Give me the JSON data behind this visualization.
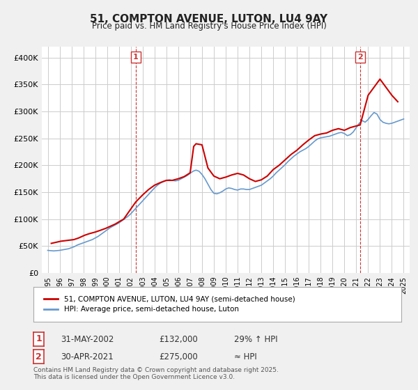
{
  "title": "51, COMPTON AVENUE, LUTON, LU4 9AY",
  "subtitle": "Price paid vs. HM Land Registry's House Price Index (HPI)",
  "xlabel": "",
  "ylabel": "",
  "ylim": [
    0,
    420000
  ],
  "yticks": [
    0,
    50000,
    100000,
    150000,
    200000,
    250000,
    300000,
    350000,
    400000
  ],
  "ytick_labels": [
    "£0",
    "£50K",
    "£100K",
    "£150K",
    "£200K",
    "£250K",
    "£300K",
    "£350K",
    "£400K"
  ],
  "bg_color": "#f0f0f0",
  "plot_bg_color": "#ffffff",
  "grid_color": "#cccccc",
  "red_color": "#cc0000",
  "blue_color": "#6699cc",
  "marker1_x": 2002.42,
  "marker1_y": 132000,
  "marker2_x": 2021.33,
  "marker2_y": 275000,
  "legend_label_red": "51, COMPTON AVENUE, LUTON, LU4 9AY (semi-detached house)",
  "legend_label_blue": "HPI: Average price, semi-detached house, Luton",
  "annotation1": "1",
  "annotation2": "2",
  "note1_box": "1    31-MAY-2002    £132,000    29% ↑ HPI",
  "note2_box": "2    30-APR-2021    £275,000    ≈ HPI",
  "footer": "Contains HM Land Registry data © Crown copyright and database right 2025.\nThis data is licensed under the Open Government Licence v3.0.",
  "hpi_data": {
    "years": [
      1995.0,
      1995.25,
      1995.5,
      1995.75,
      1996.0,
      1996.25,
      1996.5,
      1996.75,
      1997.0,
      1997.25,
      1997.5,
      1997.75,
      1998.0,
      1998.25,
      1998.5,
      1998.75,
      1999.0,
      1999.25,
      1999.5,
      1999.75,
      2000.0,
      2000.25,
      2000.5,
      2000.75,
      2001.0,
      2001.25,
      2001.5,
      2001.75,
      2002.0,
      2002.25,
      2002.5,
      2002.75,
      2003.0,
      2003.25,
      2003.5,
      2003.75,
      2004.0,
      2004.25,
      2004.5,
      2004.75,
      2005.0,
      2005.25,
      2005.5,
      2005.75,
      2006.0,
      2006.25,
      2006.5,
      2006.75,
      2007.0,
      2007.25,
      2007.5,
      2007.75,
      2008.0,
      2008.25,
      2008.5,
      2008.75,
      2009.0,
      2009.25,
      2009.5,
      2009.75,
      2010.0,
      2010.25,
      2010.5,
      2010.75,
      2011.0,
      2011.25,
      2011.5,
      2011.75,
      2012.0,
      2012.25,
      2012.5,
      2012.75,
      2013.0,
      2013.25,
      2013.5,
      2013.75,
      2014.0,
      2014.25,
      2014.5,
      2014.75,
      2015.0,
      2015.25,
      2015.5,
      2015.75,
      2016.0,
      2016.25,
      2016.5,
      2016.75,
      2017.0,
      2017.25,
      2017.5,
      2017.75,
      2018.0,
      2018.25,
      2018.5,
      2018.75,
      2019.0,
      2019.25,
      2019.5,
      2019.75,
      2020.0,
      2020.25,
      2020.5,
      2020.75,
      2021.0,
      2021.25,
      2021.5,
      2021.75,
      2022.0,
      2022.25,
      2022.5,
      2022.75,
      2023.0,
      2023.25,
      2023.5,
      2023.75,
      2024.0,
      2024.25,
      2024.5,
      2024.75,
      2025.0
    ],
    "values": [
      42000,
      41500,
      41000,
      41500,
      42000,
      43000,
      44000,
      45000,
      47000,
      49000,
      52000,
      54000,
      56000,
      58000,
      60000,
      62000,
      65000,
      68000,
      72000,
      76000,
      80000,
      84000,
      87000,
      90000,
      93000,
      97000,
      101000,
      105000,
      110000,
      116000,
      122000,
      128000,
      134000,
      140000,
      146000,
      152000,
      158000,
      163000,
      167000,
      170000,
      172000,
      173000,
      172000,
      171000,
      172000,
      175000,
      178000,
      181000,
      185000,
      189000,
      191000,
      189000,
      183000,
      175000,
      165000,
      155000,
      148000,
      147000,
      149000,
      152000,
      156000,
      158000,
      157000,
      155000,
      154000,
      156000,
      156000,
      155000,
      155000,
      157000,
      159000,
      161000,
      163000,
      167000,
      171000,
      175000,
      180000,
      186000,
      191000,
      196000,
      201000,
      207000,
      212000,
      217000,
      221000,
      225000,
      228000,
      231000,
      235000,
      240000,
      245000,
      249000,
      251000,
      252000,
      253000,
      254000,
      256000,
      258000,
      260000,
      261000,
      259000,
      255000,
      257000,
      262000,
      270000,
      278000,
      283000,
      280000,
      285000,
      292000,
      298000,
      295000,
      285000,
      280000,
      278000,
      277000,
      278000,
      280000,
      282000,
      284000,
      286000
    ]
  },
  "price_data": {
    "years": [
      1995.3,
      1995.7,
      1996.1,
      1997.2,
      1997.6,
      1998.1,
      1998.5,
      1999.0,
      1999.4,
      1999.9,
      2000.3,
      2000.7,
      2001.0,
      2001.4,
      2002.42,
      2003.0,
      2003.5,
      2004.0,
      2004.5,
      2005.0,
      2005.5,
      2006.0,
      2006.5,
      2007.0,
      2007.3,
      2007.5,
      2008.0,
      2008.5,
      2009.0,
      2009.5,
      2010.0,
      2010.5,
      2011.0,
      2011.5,
      2012.0,
      2012.5,
      2013.0,
      2013.5,
      2014.0,
      2014.5,
      2015.0,
      2015.5,
      2016.0,
      2016.5,
      2017.0,
      2017.5,
      2018.0,
      2018.5,
      2019.0,
      2019.5,
      2020.0,
      2020.5,
      2021.33,
      2022.0,
      2022.5,
      2023.0,
      2023.5,
      2024.0,
      2024.5
    ],
    "values": [
      55000,
      57000,
      59000,
      62000,
      65000,
      70000,
      73000,
      76000,
      79000,
      83000,
      87000,
      91000,
      95000,
      100000,
      132000,
      145000,
      155000,
      163000,
      168000,
      172000,
      172000,
      175000,
      179000,
      186000,
      235000,
      240000,
      238000,
      195000,
      180000,
      175000,
      178000,
      182000,
      185000,
      182000,
      175000,
      170000,
      173000,
      180000,
      192000,
      200000,
      210000,
      220000,
      228000,
      238000,
      247000,
      255000,
      258000,
      260000,
      265000,
      268000,
      265000,
      270000,
      275000,
      330000,
      345000,
      360000,
      345000,
      330000,
      318000
    ]
  },
  "xlim": [
    1994.5,
    2025.5
  ],
  "xticks": [
    1995,
    1996,
    1997,
    1998,
    1999,
    2000,
    2001,
    2002,
    2003,
    2004,
    2005,
    2006,
    2007,
    2008,
    2009,
    2010,
    2011,
    2012,
    2013,
    2014,
    2015,
    2016,
    2017,
    2018,
    2019,
    2020,
    2021,
    2022,
    2023,
    2024,
    2025
  ]
}
